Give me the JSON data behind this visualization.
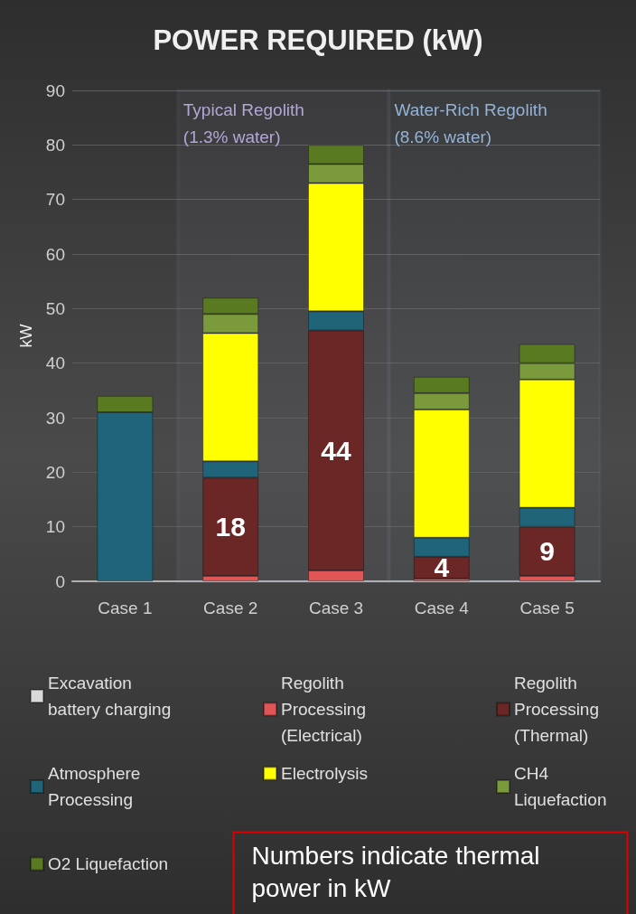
{
  "chart_data": {
    "type": "bar",
    "title": "POWER REQUIRED (kW)",
    "ylabel": "kW",
    "categories": [
      "Case 1",
      "Case 2",
      "Case 3",
      "Case 4",
      "Case 5"
    ],
    "stacked": true,
    "ylim": [
      0,
      90
    ],
    "yticks": [
      0,
      10,
      20,
      30,
      40,
      50,
      60,
      70,
      80,
      90
    ],
    "grid": "y",
    "legend": "bottom",
    "series": [
      {
        "name": "Excavation battery charging",
        "color": "#d9d9d9",
        "values": [
          null,
          null,
          null,
          null,
          null
        ]
      },
      {
        "name": "Regolith Processing (Electrical)",
        "color": "#e05555",
        "values": [
          null,
          1,
          2,
          0.5,
          1
        ]
      },
      {
        "name": "Regolith Processing (Thermal)",
        "color": "#6b2626",
        "values": [
          null,
          18,
          44,
          4,
          9
        ],
        "value_labels": [
          null,
          "18",
          "44",
          "4",
          "9"
        ]
      },
      {
        "name": "Atmosphere Processing",
        "color": "#1f6478",
        "values": [
          31,
          3,
          3.5,
          3.5,
          3.5
        ]
      },
      {
        "name": "Electrolysis",
        "color": "#ffff00",
        "values": [
          null,
          23.5,
          23.5,
          23.5,
          23.5
        ]
      },
      {
        "name": "CH4 Liquefaction",
        "color": "#7b9a3c",
        "values": [
          null,
          3.5,
          3.5,
          3,
          3
        ]
      },
      {
        "name": "O2 Liquefaction",
        "color": "#5a7a22",
        "values": [
          3,
          3,
          3.5,
          3,
          3.5
        ]
      }
    ],
    "bands": [
      {
        "axis": "x",
        "from": "Case 2",
        "to": "Case 3",
        "label": "Typical Regolith\n(1.3% water)",
        "color": "#b4a7d6"
      },
      {
        "axis": "x",
        "from": "Case 4",
        "to": "Case 5",
        "label": "Water-Rich Regolith\n(8.6% water)",
        "color": "#95b3d7"
      }
    ],
    "annotations": [
      "Numbers indicate thermal power in kW"
    ]
  }
}
